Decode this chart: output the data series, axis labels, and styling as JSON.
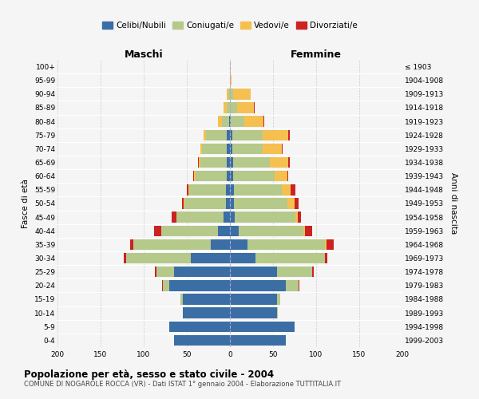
{
  "age_groups": [
    "0-4",
    "5-9",
    "10-14",
    "15-19",
    "20-24",
    "25-29",
    "30-34",
    "35-39",
    "40-44",
    "45-49",
    "50-54",
    "55-59",
    "60-64",
    "65-69",
    "70-74",
    "75-79",
    "80-84",
    "85-89",
    "90-94",
    "95-99",
    "100+"
  ],
  "birth_years": [
    "1999-2003",
    "1994-1998",
    "1989-1993",
    "1984-1988",
    "1979-1983",
    "1974-1978",
    "1969-1973",
    "1964-1968",
    "1959-1963",
    "1954-1958",
    "1949-1953",
    "1944-1948",
    "1939-1943",
    "1934-1938",
    "1929-1933",
    "1924-1928",
    "1919-1923",
    "1914-1918",
    "1909-1913",
    "1904-1908",
    "≤ 1903"
  ],
  "colors": {
    "celibi": "#3b6ea5",
    "coniugati": "#b5c98a",
    "vedovi": "#f5c050",
    "divorziati": "#cc2222"
  },
  "males": {
    "celibi": [
      65,
      70,
      55,
      55,
      70,
      65,
      45,
      22,
      14,
      7,
      5,
      5,
      4,
      4,
      4,
      4,
      1,
      0,
      0,
      0,
      0
    ],
    "coniugati": [
      0,
      0,
      0,
      2,
      8,
      20,
      75,
      90,
      66,
      55,
      48,
      42,
      36,
      30,
      28,
      24,
      8,
      4,
      2,
      0,
      0
    ],
    "vedovi": [
      0,
      0,
      0,
      0,
      0,
      0,
      0,
      0,
      0,
      0,
      1,
      1,
      2,
      2,
      2,
      3,
      5,
      3,
      2,
      0,
      0
    ],
    "divorziati": [
      0,
      0,
      0,
      0,
      1,
      2,
      3,
      4,
      8,
      6,
      2,
      2,
      1,
      1,
      0,
      0,
      0,
      0,
      0,
      0,
      0
    ]
  },
  "females": {
    "nubili": [
      65,
      75,
      55,
      55,
      65,
      55,
      30,
      20,
      10,
      6,
      5,
      5,
      4,
      4,
      3,
      3,
      1,
      0,
      0,
      0,
      0
    ],
    "coniugate": [
      0,
      0,
      1,
      3,
      15,
      40,
      80,
      90,
      75,
      70,
      62,
      55,
      48,
      42,
      35,
      35,
      16,
      8,
      4,
      0,
      0
    ],
    "vedove": [
      0,
      0,
      0,
      0,
      0,
      0,
      0,
      2,
      2,
      3,
      8,
      10,
      15,
      22,
      22,
      30,
      22,
      20,
      20,
      2,
      1
    ],
    "divorziate": [
      0,
      0,
      0,
      0,
      1,
      2,
      3,
      8,
      8,
      3,
      5,
      6,
      1,
      1,
      1,
      1,
      1,
      1,
      0,
      0,
      0
    ]
  },
  "title": "Popolazione per età, sesso e stato civile - 2004",
  "subtitle": "COMUNE DI NOGAROLE ROCCA (VR) - Dati ISTAT 1° gennaio 2004 - Elaborazione TUTTITALIA.IT",
  "xlabel_left": "Maschi",
  "xlabel_right": "Femmine",
  "ylabel_left": "Fasce di età",
  "ylabel_right": "Anni di nascita",
  "legend_labels": [
    "Celibi/Nubili",
    "Coniugati/e",
    "Vedovi/e",
    "Divorziati/e"
  ],
  "xlim": 200,
  "background_color": "#f5f5f5",
  "grid_color": "#cccccc"
}
